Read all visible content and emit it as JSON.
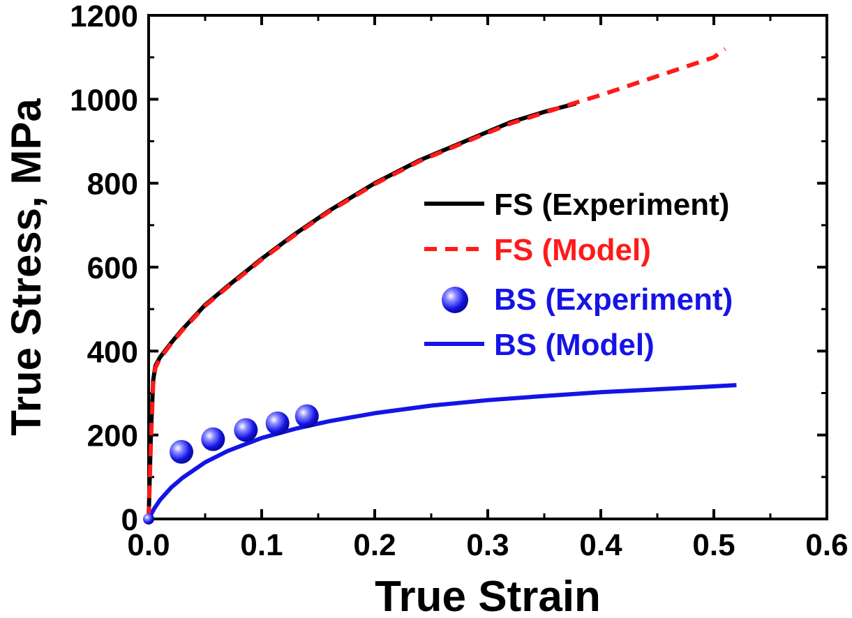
{
  "chart_data": {
    "type": "line",
    "xlabel": "True Strain",
    "ylabel": "True Stress, MPa",
    "xlim": [
      0.0,
      0.6
    ],
    "ylim": [
      0,
      1200
    ],
    "xticks": [
      "0.0",
      "0.1",
      "0.2",
      "0.3",
      "0.4",
      "0.5",
      "0.6"
    ],
    "yticks": [
      "0",
      "200",
      "400",
      "600",
      "800",
      "1000",
      "1200"
    ],
    "grid": false,
    "legend_position": "right",
    "series": [
      {
        "name": "FS (Experiment)",
        "style": "solid-line",
        "color": "#000000",
        "x": [
          0.0,
          0.002,
          0.004,
          0.006,
          0.01,
          0.02,
          0.03,
          0.05,
          0.07,
          0.1,
          0.13,
          0.16,
          0.2,
          0.24,
          0.28,
          0.32,
          0.35,
          0.378
        ],
        "y": [
          0,
          200,
          330,
          365,
          385,
          420,
          452,
          510,
          555,
          620,
          680,
          735,
          800,
          855,
          900,
          945,
          970,
          990
        ]
      },
      {
        "name": "FS (Model)",
        "style": "dashed-line",
        "color": "#ff1a1a",
        "x": [
          0.0,
          0.002,
          0.004,
          0.006,
          0.01,
          0.02,
          0.03,
          0.05,
          0.07,
          0.1,
          0.13,
          0.16,
          0.2,
          0.24,
          0.28,
          0.32,
          0.35,
          0.378,
          0.4,
          0.45,
          0.5,
          0.51
        ],
        "y": [
          0,
          180,
          320,
          360,
          382,
          418,
          450,
          508,
          553,
          618,
          678,
          733,
          798,
          853,
          898,
          942,
          968,
          992,
          1010,
          1055,
          1100,
          1120
        ]
      },
      {
        "name": "BS (Experiment)",
        "style": "markers",
        "color": "#1414e6",
        "x": [
          0.0,
          0.029,
          0.057,
          0.086,
          0.114,
          0.14
        ],
        "y": [
          0,
          160,
          190,
          212,
          228,
          245
        ]
      },
      {
        "name": "BS (Model)",
        "style": "solid-line",
        "color": "#1414e6",
        "x": [
          0.0,
          0.005,
          0.01,
          0.02,
          0.03,
          0.05,
          0.07,
          0.1,
          0.13,
          0.16,
          0.2,
          0.25,
          0.3,
          0.35,
          0.4,
          0.45,
          0.5,
          0.52
        ],
        "y": [
          0,
          25,
          45,
          75,
          98,
          135,
          162,
          193,
          215,
          233,
          252,
          270,
          283,
          293,
          302,
          309,
          316,
          319
        ]
      }
    ]
  }
}
